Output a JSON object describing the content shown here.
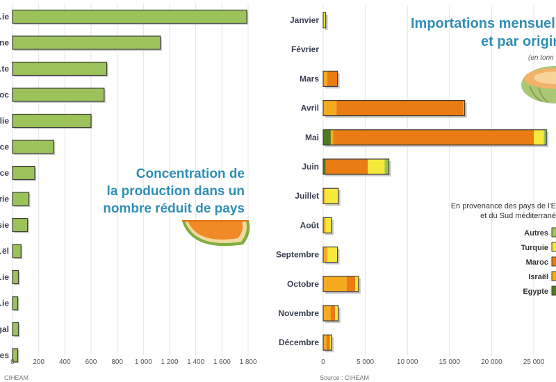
{
  "colors": {
    "green": "#9cc35a",
    "yellow": "#f7e83c",
    "orange": "#ea7c12",
    "amber": "#f5aa1d",
    "dark_green": "#4f7a1e",
    "title": "#2f8fb5"
  },
  "left": {
    "title_lines": [
      "Concentration de",
      "la production dans un",
      "nombre réduit de pays"
    ],
    "source": "CIHEAM",
    "icon": "melon-slice-icon"
  },
  "right": {
    "title_lines": [
      "Importations mensuelle",
      "et par origin"
    ],
    "unit_note": "(en tonn",
    "source": "Source : CIHEAM",
    "legend_title_lines": [
      "En provenance des pays de l'E",
      "et du Sud méditerrané"
    ],
    "icon": "melon-half-icon"
  },
  "chart_data": [
    {
      "type": "bar",
      "orientation": "horizontal",
      "categories": [
        "…ie",
        "…ne",
        "…te",
        "…oc",
        "…lie",
        "…ce",
        "…ce",
        "…rie",
        "…sie",
        "…ël",
        "…ie",
        "…ie",
        "…gal",
        "…es"
      ],
      "values": [
        1790,
        1130,
        720,
        700,
        600,
        315,
        170,
        125,
        115,
        65,
        45,
        40,
        45,
        40
      ],
      "xlim": [
        0,
        1800
      ],
      "xticks": [
        "0",
        "200",
        "400",
        "600",
        "800",
        "1 000",
        "1 200",
        "1 400",
        "1 600",
        "1 800"
      ],
      "grid": true
    },
    {
      "type": "bar",
      "orientation": "horizontal",
      "stacked": true,
      "categories": [
        "Janvier",
        "Février",
        "Mars",
        "Avril",
        "Mai",
        "Juin",
        "Juillet",
        "Août",
        "Septembre",
        "Octobre",
        "Novembre",
        "Décembre"
      ],
      "series": [
        {
          "name": "Egypte",
          "values": [
            0,
            0,
            0,
            0,
            900,
            300,
            0,
            0,
            0,
            0,
            0,
            0
          ]
        },
        {
          "name": "Israël",
          "values": [
            0,
            0,
            500,
            1600,
            300,
            0,
            200,
            300,
            500,
            2800,
            900,
            400
          ]
        },
        {
          "name": "Maroc",
          "values": [
            0,
            0,
            1200,
            15000,
            23800,
            5000,
            0,
            0,
            0,
            1000,
            500,
            400
          ]
        },
        {
          "name": "Turquie",
          "values": [
            300,
            0,
            0,
            0,
            1200,
            2000,
            1600,
            700,
            1200,
            400,
            400,
            200
          ]
        },
        {
          "name": "Autres",
          "values": [
            0,
            0,
            0,
            200,
            300,
            500,
            0,
            0,
            0,
            0,
            0,
            0
          ]
        }
      ],
      "xlim": [
        0,
        27000
      ],
      "xticks": [
        "0",
        "5 000",
        "10 000",
        "15 000",
        "20 000",
        "25 000"
      ],
      "grid": true,
      "legend": "right"
    }
  ]
}
